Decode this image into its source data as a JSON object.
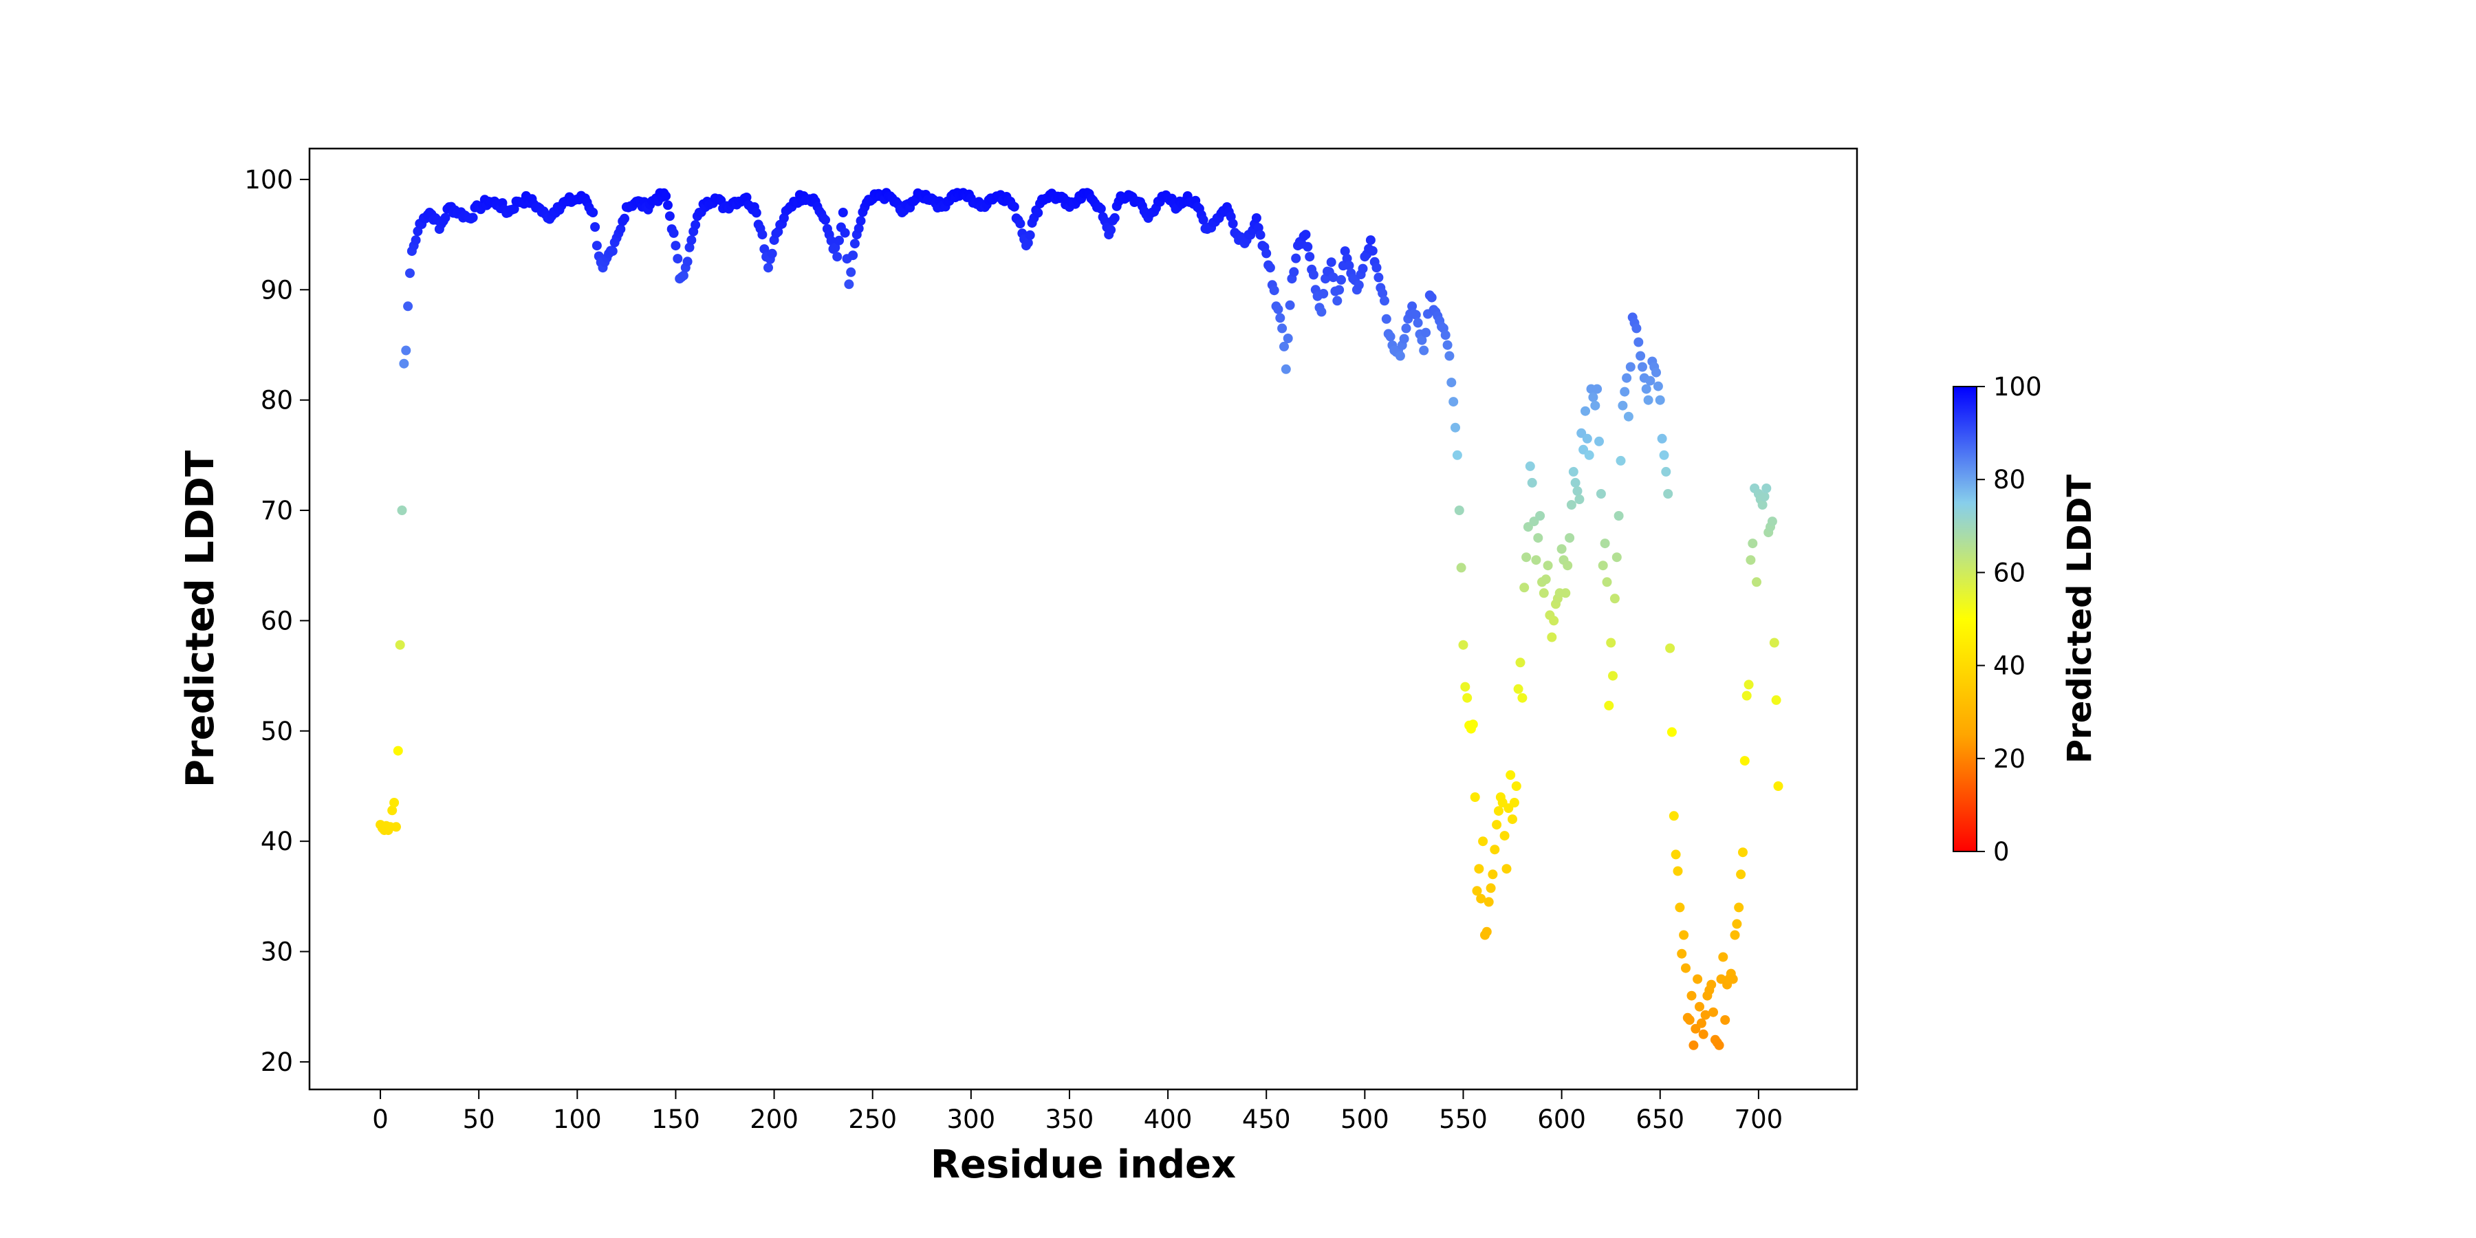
{
  "chart_data": {
    "type": "scatter",
    "title": "",
    "xlabel": "Residue index",
    "ylabel": "Predicted LDDT",
    "xlim": [
      -36,
      750
    ],
    "ylim": [
      17.5,
      102.8
    ],
    "x_ticks": [
      "0",
      "50",
      "100",
      "150",
      "200",
      "250",
      "300",
      "350",
      "400",
      "450",
      "500",
      "550",
      "600",
      "650",
      "700"
    ],
    "y_ticks": [
      "20",
      "30",
      "40",
      "50",
      "60",
      "70",
      "80",
      "90",
      "100"
    ],
    "grid": false,
    "colorbar": {
      "label": "Predicted LDDT",
      "range": [
        0,
        100
      ],
      "ticks": [
        "0",
        "20",
        "40",
        "60",
        "80",
        "100"
      ],
      "colors": [
        "#ff0000",
        "#ffa500",
        "#ffff00",
        "#87ceeb",
        "#0000ff"
      ]
    },
    "anchor_points": [
      [
        0,
        41.5
      ],
      [
        1,
        41.2
      ],
      [
        2,
        41.0
      ],
      [
        3,
        41.4
      ],
      [
        4,
        41.0
      ],
      [
        5,
        41.3
      ],
      [
        6,
        42.8
      ],
      [
        7,
        43.5
      ],
      [
        8,
        41.3
      ],
      [
        9,
        48.2
      ],
      [
        10,
        57.8
      ],
      [
        11,
        70.0
      ],
      [
        12,
        83.3
      ],
      [
        13,
        84.5
      ],
      [
        14,
        88.5
      ],
      [
        15,
        91.5
      ],
      [
        16,
        93.5
      ],
      [
        18,
        94.5
      ],
      [
        20,
        96.0
      ],
      [
        22,
        96.5
      ],
      [
        25,
        97.0
      ],
      [
        28,
        96.5
      ],
      [
        30,
        95.5
      ],
      [
        35,
        97.5
      ],
      [
        40,
        97.0
      ],
      [
        45,
        96.5
      ],
      [
        50,
        97.5
      ],
      [
        55,
        98.0
      ],
      [
        60,
        97.8
      ],
      [
        65,
        97.0
      ],
      [
        70,
        98.0
      ],
      [
        75,
        98.2
      ],
      [
        80,
        97.5
      ],
      [
        85,
        96.5
      ],
      [
        90,
        97.5
      ],
      [
        95,
        98.0
      ],
      [
        100,
        98.2
      ],
      [
        104,
        98.3
      ],
      [
        108,
        97.0
      ],
      [
        110,
        94.0
      ],
      [
        113,
        92.0
      ],
      [
        118,
        93.5
      ],
      [
        122,
        95.5
      ],
      [
        125,
        97.5
      ],
      [
        130,
        98.0
      ],
      [
        135,
        97.5
      ],
      [
        140,
        98.3
      ],
      [
        145,
        98.5
      ],
      [
        150,
        94.0
      ],
      [
        152,
        91.0
      ],
      [
        155,
        92.0
      ],
      [
        158,
        94.5
      ],
      [
        162,
        97.0
      ],
      [
        166,
        98.0
      ],
      [
        170,
        98.3
      ],
      [
        175,
        97.5
      ],
      [
        180,
        98.0
      ],
      [
        185,
        98.3
      ],
      [
        190,
        97.5
      ],
      [
        194,
        95.0
      ],
      [
        197,
        92.0
      ],
      [
        200,
        94.5
      ],
      [
        205,
        96.5
      ],
      [
        210,
        98.0
      ],
      [
        215,
        98.5
      ],
      [
        220,
        98.3
      ],
      [
        225,
        96.5
      ],
      [
        228,
        95.0
      ],
      [
        232,
        93.0
      ],
      [
        235,
        97.0
      ],
      [
        238,
        90.5
      ],
      [
        242,
        95.0
      ],
      [
        246,
        97.5
      ],
      [
        250,
        98.2
      ],
      [
        255,
        98.6
      ],
      [
        260,
        98.3
      ],
      [
        265,
        97.0
      ],
      [
        270,
        98.0
      ],
      [
        275,
        98.6
      ],
      [
        280,
        98.3
      ],
      [
        285,
        97.5
      ],
      [
        290,
        98.5
      ],
      [
        295,
        98.7
      ],
      [
        300,
        98.3
      ],
      [
        305,
        97.5
      ],
      [
        310,
        98.3
      ],
      [
        315,
        98.6
      ],
      [
        320,
        98.0
      ],
      [
        325,
        96.0
      ],
      [
        328,
        94.0
      ],
      [
        332,
        96.5
      ],
      [
        336,
        98.2
      ],
      [
        340,
        98.6
      ],
      [
        345,
        98.3
      ],
      [
        350,
        97.5
      ],
      [
        355,
        98.5
      ],
      [
        360,
        98.7
      ],
      [
        365,
        97.5
      ],
      [
        370,
        95.0
      ],
      [
        375,
        98.0
      ],
      [
        380,
        98.6
      ],
      [
        385,
        98.0
      ],
      [
        390,
        96.5
      ],
      [
        395,
        98.0
      ],
      [
        400,
        98.3
      ],
      [
        405,
        97.5
      ],
      [
        410,
        98.5
      ],
      [
        415,
        97.5
      ],
      [
        420,
        95.5
      ],
      [
        425,
        96.5
      ],
      [
        430,
        97.5
      ],
      [
        435,
        95.0
      ],
      [
        440,
        94.5
      ],
      [
        445,
        96.5
      ],
      [
        448,
        94.0
      ],
      [
        452,
        92.0
      ],
      [
        455,
        88.5
      ],
      [
        458,
        86.5
      ],
      [
        460,
        82.8
      ],
      [
        463,
        91.0
      ],
      [
        466,
        94.0
      ],
      [
        470,
        95.0
      ],
      [
        472,
        93.0
      ],
      [
        475,
        90.0
      ],
      [
        478,
        88.0
      ],
      [
        480,
        91.0
      ],
      [
        483,
        92.5
      ],
      [
        486,
        89.0
      ],
      [
        490,
        93.5
      ],
      [
        493,
        91.5
      ],
      [
        496,
        90.0
      ],
      [
        500,
        93.0
      ],
      [
        503,
        94.5
      ],
      [
        506,
        92.0
      ],
      [
        510,
        89.0
      ],
      [
        512,
        86.0
      ],
      [
        515,
        84.5
      ],
      [
        518,
        84.0
      ],
      [
        521,
        86.5
      ],
      [
        524,
        88.5
      ],
      [
        527,
        87.0
      ],
      [
        530,
        84.5
      ],
      [
        533,
        89.5
      ],
      [
        536,
        88.0
      ],
      [
        540,
        86.5
      ],
      [
        543,
        84.0
      ],
      [
        546,
        77.5
      ],
      [
        547,
        75.0
      ],
      [
        548,
        70.0
      ],
      [
        549,
        64.8
      ],
      [
        550,
        57.8
      ],
      [
        551,
        54.0
      ],
      [
        552,
        53.0
      ],
      [
        553,
        50.5
      ],
      [
        554,
        50.2
      ],
      [
        555,
        50.6
      ],
      [
        556,
        44.0
      ],
      [
        557,
        35.5
      ],
      [
        558,
        37.5
      ],
      [
        559,
        34.8
      ],
      [
        560,
        40.0
      ],
      [
        561,
        31.5
      ],
      [
        562,
        31.8
      ],
      [
        563,
        34.5
      ],
      [
        565,
        37.0
      ],
      [
        567,
        41.5
      ],
      [
        569,
        44.0
      ],
      [
        570,
        43.5
      ],
      [
        572,
        37.5
      ],
      [
        573,
        43.0
      ],
      [
        574,
        46.0
      ],
      [
        575,
        42.0
      ],
      [
        577,
        45.0
      ],
      [
        578,
        53.8
      ],
      [
        579,
        56.2
      ],
      [
        580,
        53.0
      ],
      [
        581,
        63.0
      ],
      [
        583,
        68.5
      ],
      [
        584,
        74.0
      ],
      [
        585,
        72.5
      ],
      [
        587,
        65.5
      ],
      [
        589,
        69.5
      ],
      [
        590,
        63.5
      ],
      [
        591,
        62.5
      ],
      [
        593,
        65.0
      ],
      [
        594,
        60.5
      ],
      [
        595,
        58.5
      ],
      [
        597,
        61.5
      ],
      [
        599,
        62.5
      ],
      [
        600,
        66.5
      ],
      [
        601,
        65.5
      ],
      [
        602,
        62.5
      ],
      [
        604,
        67.5
      ],
      [
        606,
        73.5
      ],
      [
        607,
        72.5
      ],
      [
        609,
        71.0
      ],
      [
        610,
        77.0
      ],
      [
        611,
        75.5
      ],
      [
        612,
        79.0
      ],
      [
        613,
        76.5
      ],
      [
        614,
        75.0
      ],
      [
        615,
        81.0
      ],
      [
        617,
        79.5
      ],
      [
        618,
        81.0
      ],
      [
        620,
        71.5
      ],
      [
        621,
        65.0
      ],
      [
        622,
        67.0
      ],
      [
        623,
        63.5
      ],
      [
        624,
        52.3
      ],
      [
        625,
        58.0
      ],
      [
        626,
        55.0
      ],
      [
        627,
        62.0
      ],
      [
        629,
        69.5
      ],
      [
        631,
        79.5
      ],
      [
        633,
        82.0
      ],
      [
        634,
        78.5
      ],
      [
        636,
        87.5
      ],
      [
        638,
        86.5
      ],
      [
        640,
        84.0
      ],
      [
        642,
        82.0
      ],
      [
        644,
        80.0
      ],
      [
        646,
        83.5
      ],
      [
        648,
        82.5
      ],
      [
        650,
        80.0
      ],
      [
        651,
        76.5
      ],
      [
        652,
        75.0
      ],
      [
        653,
        73.5
      ],
      [
        654,
        71.5
      ],
      [
        655,
        57.5
      ],
      [
        657,
        42.3
      ],
      [
        658,
        38.8
      ],
      [
        659,
        37.3
      ],
      [
        660,
        34.0
      ],
      [
        661,
        29.8
      ],
      [
        662,
        31.5
      ],
      [
        663,
        28.5
      ],
      [
        664,
        24.0
      ],
      [
        665,
        23.8
      ],
      [
        666,
        26.0
      ],
      [
        667,
        21.5
      ],
      [
        668,
        23.0
      ],
      [
        669,
        27.5
      ],
      [
        670,
        25.0
      ],
      [
        671,
        23.5
      ],
      [
        672,
        22.5
      ],
      [
        674,
        26.0
      ],
      [
        676,
        27.0
      ],
      [
        678,
        22.0
      ],
      [
        680,
        21.5
      ],
      [
        681,
        27.5
      ],
      [
        682,
        29.5
      ],
      [
        683,
        23.8
      ],
      [
        684,
        27.0
      ],
      [
        686,
        28.0
      ],
      [
        687,
        27.5
      ],
      [
        688,
        31.5
      ],
      [
        689,
        32.5
      ],
      [
        690,
        34.0
      ],
      [
        691,
        37.0
      ],
      [
        692,
        39.0
      ],
      [
        693,
        47.3
      ],
      [
        694,
        53.2
      ],
      [
        695,
        54.2
      ],
      [
        696,
        65.5
      ],
      [
        697,
        67.0
      ],
      [
        698,
        72.0
      ],
      [
        699,
        63.5
      ],
      [
        700,
        71.5
      ],
      [
        702,
        70.5
      ],
      [
        704,
        72.0
      ],
      [
        705,
        68.0
      ],
      [
        707,
        69.0
      ],
      [
        708,
        58.0
      ],
      [
        709,
        52.8
      ],
      [
        710,
        45.0
      ]
    ]
  }
}
